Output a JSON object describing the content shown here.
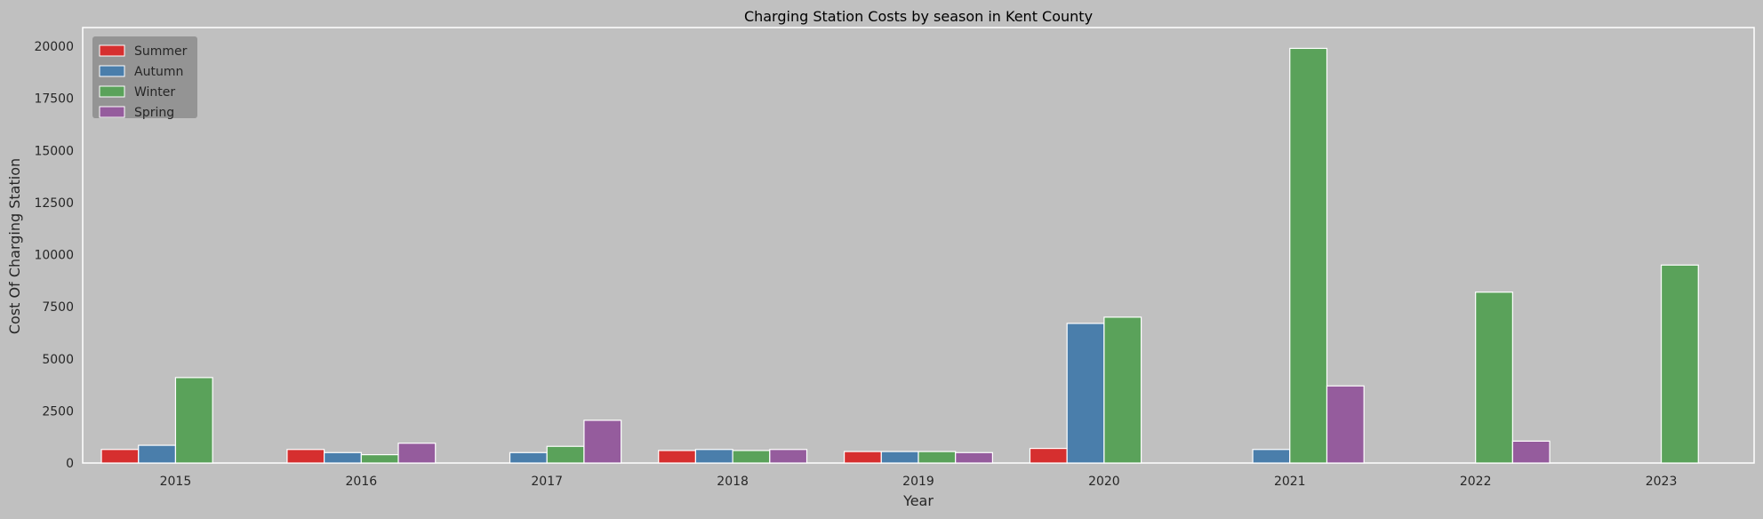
{
  "chart_data": {
    "type": "bar",
    "title": "Charging Station Costs by season in Kent County",
    "xlabel": "Year",
    "ylabel": "Cost Of Charging Station",
    "categories": [
      "2015",
      "2016",
      "2017",
      "2018",
      "2019",
      "2020",
      "2021",
      "2022",
      "2023"
    ],
    "ylim": [
      0,
      20900
    ],
    "yticks": [
      0,
      2500,
      5000,
      7500,
      10000,
      12500,
      15000,
      17500,
      20000
    ],
    "grid": false,
    "legend_position": "top-left",
    "series": [
      {
        "name": "Summer",
        "color": "#d62f2f",
        "values": [
          650,
          650,
          null,
          600,
          550,
          700,
          null,
          null,
          null
        ]
      },
      {
        "name": "Autumn",
        "color": "#4a7eab",
        "values": [
          850,
          500,
          500,
          650,
          550,
          6700,
          650,
          null,
          null
        ]
      },
      {
        "name": "Winter",
        "color": "#5aa25a",
        "values": [
          4100,
          400,
          800,
          600,
          550,
          7000,
          19900,
          8200,
          9500
        ]
      },
      {
        "name": "Spring",
        "color": "#955c9d",
        "values": [
          null,
          950,
          2050,
          650,
          500,
          null,
          3700,
          1050,
          null
        ]
      }
    ]
  }
}
